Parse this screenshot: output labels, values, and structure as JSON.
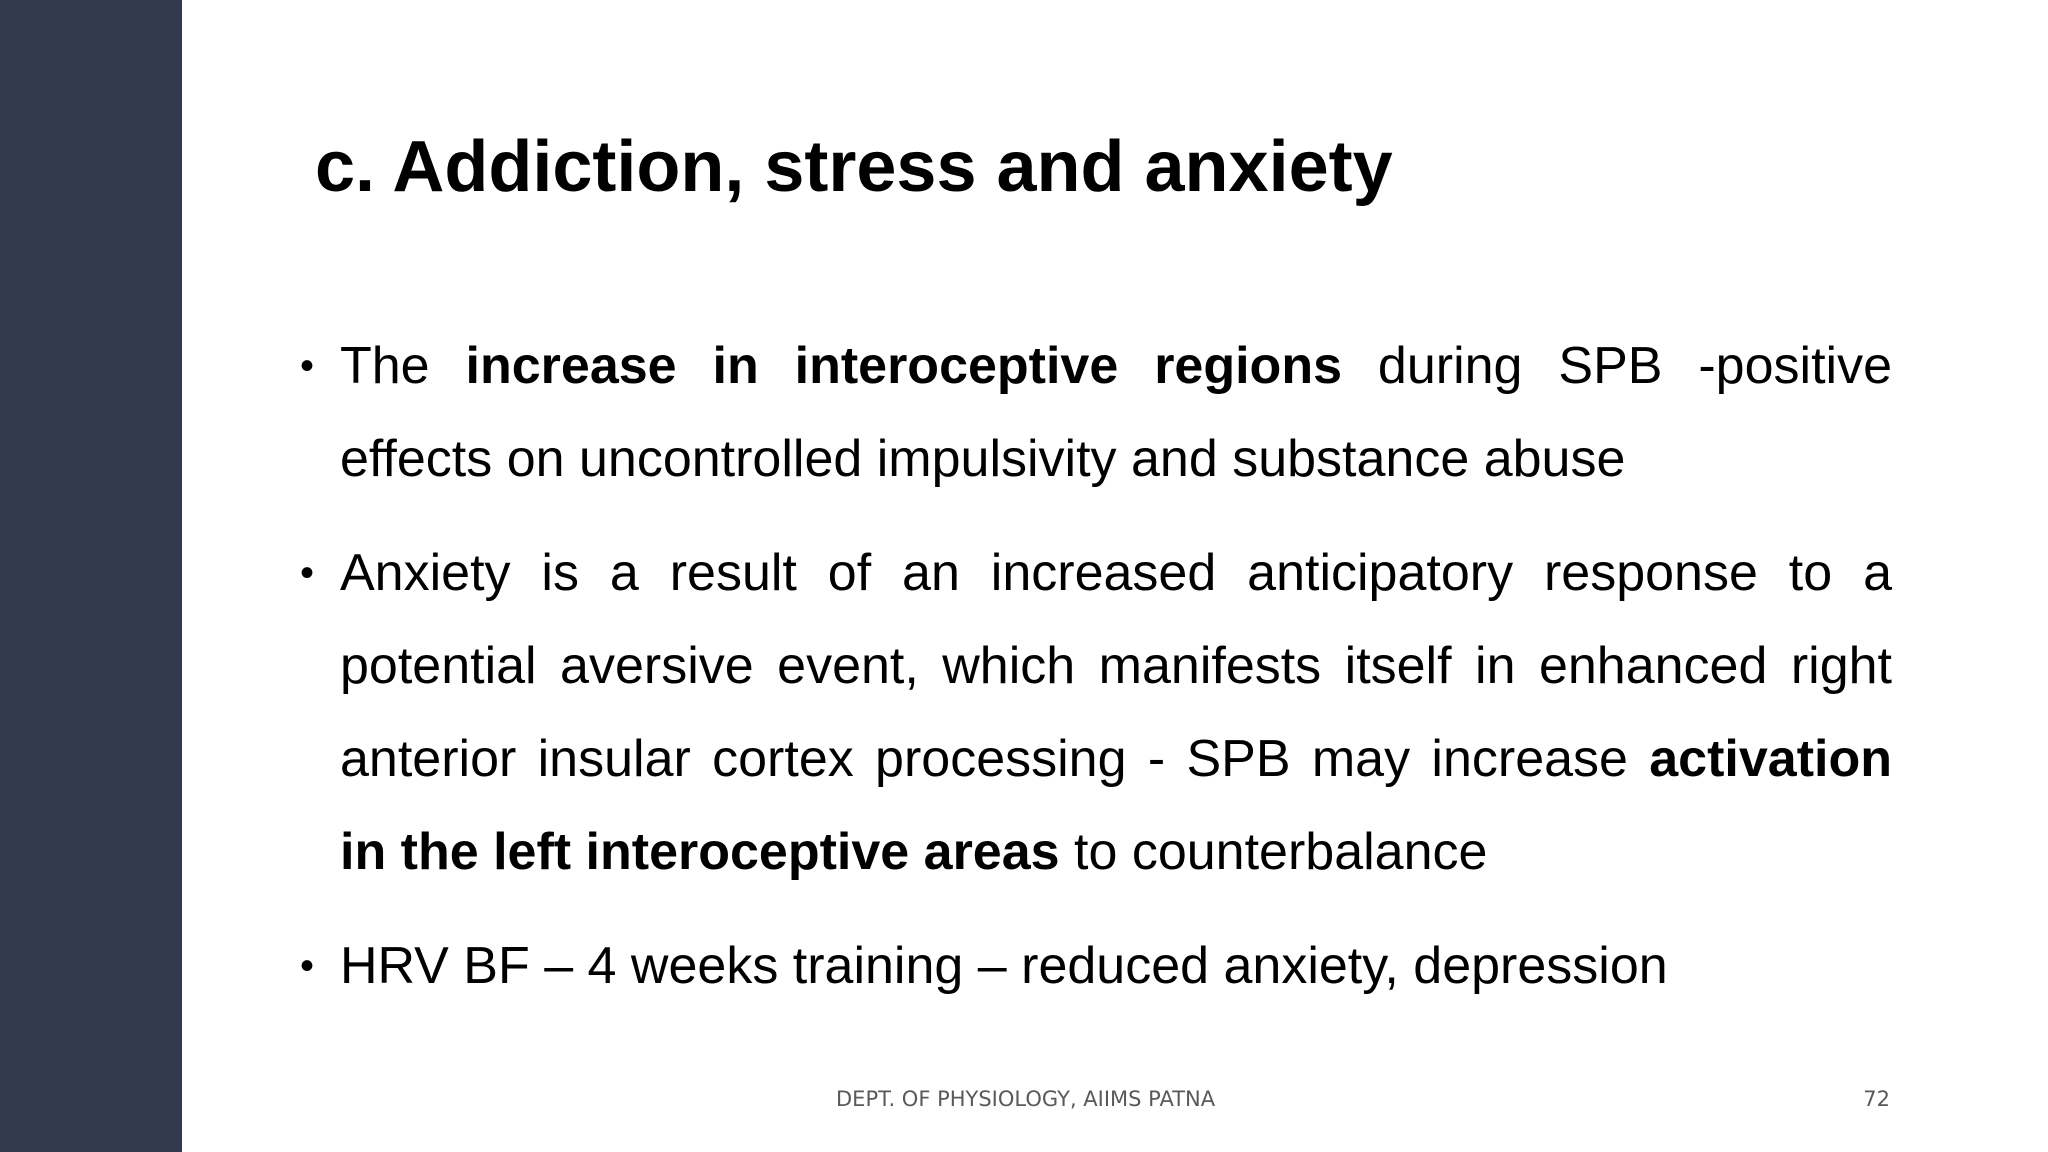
{
  "slide": {
    "title": "c. Addiction, stress and anxiety",
    "bullet_symbol": "•",
    "bullets": [
      {
        "segments": [
          {
            "text": "The ",
            "bold": false
          },
          {
            "text": "increase in interoceptive regions",
            "bold": true
          },
          {
            "text": " during SPB -positive effects on uncontrolled impulsivity and substance abuse",
            "bold": false
          }
        ]
      },
      {
        "segments": [
          {
            "text": "Anxiety is a result of an increased anticipatory response to a potential aversive event, which manifests itself in enhanced right anterior insular cortex processing  -  SPB may increase ",
            "bold": false
          },
          {
            "text": "activation in the left interoceptive areas",
            "bold": true
          },
          {
            "text": " to counterbalance",
            "bold": false
          }
        ]
      },
      {
        "segments": [
          {
            "text": "HRV BF – 4 weeks training – reduced anxiety, depression",
            "bold": false
          }
        ]
      }
    ],
    "footer": "DEPT. OF PHYSIOLOGY, AIIMS PATNA",
    "page_number": "72"
  },
  "colors": {
    "sidebar": "#333a4f",
    "background": "#ffffff",
    "text": "#000000",
    "footer_text": "#595959"
  }
}
